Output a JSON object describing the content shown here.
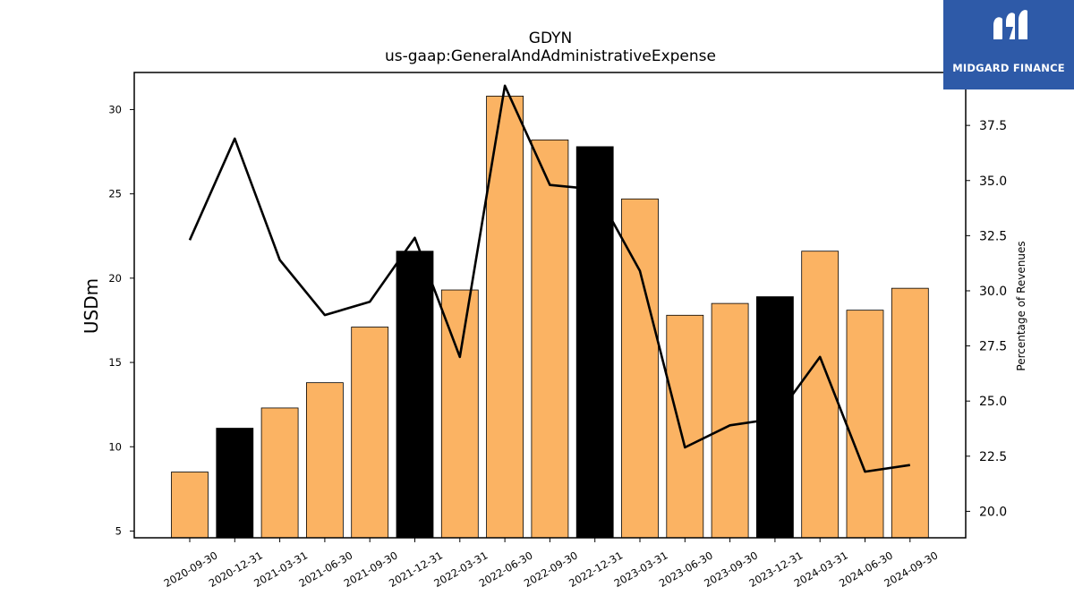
{
  "brand": {
    "name": "MIDGARD FINANCE",
    "bg_color": "#2e5aa8"
  },
  "chart_data": {
    "type": "bar",
    "title": "GDYN",
    "subtitle": "us-gaap:GeneralAndAdministrativeExpense",
    "ylabel": "USDm",
    "y2label": "Percentage of Revenues",
    "categories": [
      "2020-09-30",
      "2020-12-31",
      "2021-03-31",
      "2021-06-30",
      "2021-09-30",
      "2021-12-31",
      "2022-03-31",
      "2022-06-30",
      "2022-09-30",
      "2022-12-31",
      "2023-03-31",
      "2023-06-30",
      "2023-09-30",
      "2023-12-31",
      "2024-03-31",
      "2024-06-30",
      "2024-09-30"
    ],
    "series": [
      {
        "kind": "bar",
        "axis": "left",
        "values": [
          8.5,
          11.1,
          12.3,
          13.8,
          17.1,
          21.6,
          19.3,
          30.8,
          28.2,
          27.8,
          24.7,
          17.8,
          18.5,
          18.9,
          21.6,
          18.1,
          19.4
        ],
        "colors": [
          "#fbb363",
          "#000000",
          "#fbb363",
          "#fbb363",
          "#fbb363",
          "#000000",
          "#fbb363",
          "#fbb363",
          "#fbb363",
          "#000000",
          "#fbb363",
          "#fbb363",
          "#fbb363",
          "#000000",
          "#fbb363",
          "#fbb363",
          "#fbb363"
        ]
      },
      {
        "kind": "line",
        "axis": "right",
        "color": "#000000",
        "values": [
          32.3,
          36.9,
          31.4,
          28.9,
          29.5,
          32.4,
          27.0,
          39.3,
          34.8,
          34.6,
          30.9,
          22.9,
          23.9,
          24.2,
          27.0,
          21.8,
          22.1
        ]
      }
    ],
    "ylim": [
      4.6,
      32.2
    ],
    "y_ticks": [
      5,
      10,
      15,
      20,
      25,
      30
    ],
    "y2lim": [
      18.8,
      39.9
    ],
    "y2_ticks": [
      "20.0",
      "22.5",
      "25.0",
      "27.5",
      "30.0",
      "32.5",
      "35.0",
      "37.5"
    ],
    "grid": false
  }
}
